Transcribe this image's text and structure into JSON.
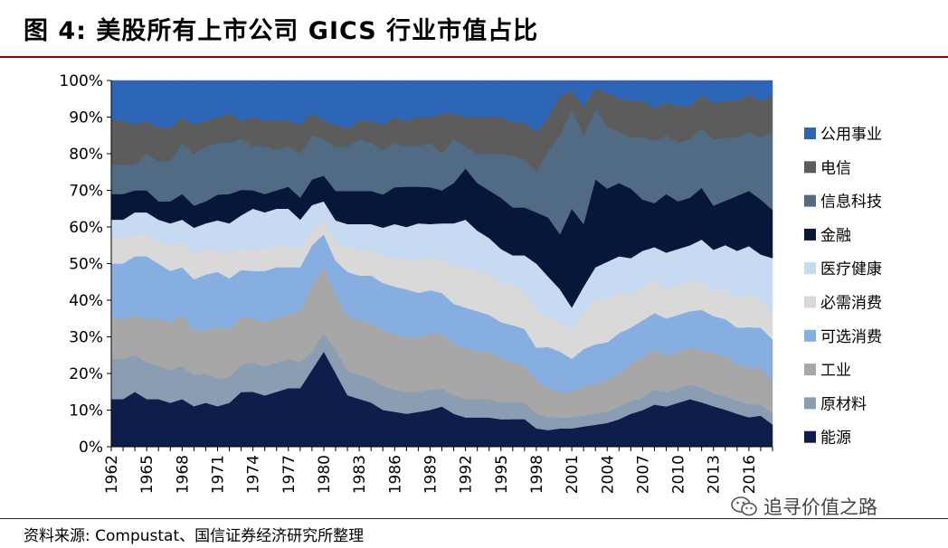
{
  "header": {
    "title": "图 4:  美股所有上市公司 GICS 行业市值占比"
  },
  "footer": {
    "source": "资料来源: Compustat、国信证券经济研究所整理",
    "watermark": "追寻价值之路",
    "watermark_icon": "wechat-icon"
  },
  "chart_data": {
    "type": "area",
    "stacked": true,
    "normalized": true,
    "title": "美股所有上市公司 GICS 行业市值占比",
    "xlabel": "",
    "ylabel": "",
    "ylim": [
      0,
      100
    ],
    "yticks": [
      "0%",
      "10%",
      "20%",
      "30%",
      "40%",
      "50%",
      "60%",
      "70%",
      "80%",
      "90%",
      "100%"
    ],
    "xtick_labels": [
      "1962",
      "1965",
      "1968",
      "1971",
      "1974",
      "1977",
      "1980",
      "1983",
      "1986",
      "1989",
      "1992",
      "1995",
      "1998",
      "2001",
      "2004",
      "2007",
      "2010",
      "2013",
      "2016"
    ],
    "x": [
      1962,
      1963,
      1964,
      1965,
      1966,
      1967,
      1968,
      1969,
      1970,
      1971,
      1972,
      1973,
      1974,
      1975,
      1976,
      1977,
      1978,
      1979,
      1980,
      1981,
      1982,
      1983,
      1984,
      1985,
      1986,
      1987,
      1988,
      1989,
      1990,
      1991,
      1992,
      1993,
      1994,
      1995,
      1996,
      1997,
      1998,
      1999,
      2000,
      2001,
      2002,
      2003,
      2004,
      2005,
      2006,
      2007,
      2008,
      2009,
      2010,
      2011,
      2012,
      2013,
      2014,
      2015,
      2016,
      2017,
      2018
    ],
    "legend_position": "right",
    "series": [
      {
        "name": "能源",
        "color": "#0d1e4b",
        "values": [
          13,
          13,
          15,
          13,
          13,
          12,
          13,
          11,
          12,
          11,
          12,
          15,
          15,
          14,
          15,
          16,
          16,
          21,
          26,
          20,
          14,
          13,
          12,
          10,
          9.5,
          9,
          9.5,
          10,
          11,
          9,
          8,
          8,
          8,
          7.5,
          7.5,
          7.5,
          5,
          4.5,
          5,
          5,
          5.5,
          6,
          6.5,
          7.5,
          9,
          10,
          11.5,
          11,
          12,
          13,
          12,
          11,
          10,
          9,
          8,
          8.5,
          6
        ]
      },
      {
        "name": "原材料",
        "color": "#8b9db3",
        "values": [
          11,
          11,
          10,
          10,
          9,
          9,
          9,
          8.5,
          8,
          7.5,
          7,
          7.5,
          8,
          8,
          8,
          8,
          7,
          5,
          5,
          6.5,
          6.5,
          6.5,
          6.5,
          6.5,
          6,
          6,
          5.5,
          5.5,
          5,
          5,
          5,
          5,
          5,
          4.5,
          4.5,
          4.5,
          4,
          3.5,
          3,
          3,
          3,
          3,
          3,
          3.5,
          3.5,
          3.5,
          4,
          4,
          4,
          4,
          4,
          3.5,
          3.5,
          3.5,
          3.5,
          3,
          3
        ]
      },
      {
        "name": "工业",
        "color": "#a7a7a7",
        "values": [
          11,
          11,
          11,
          12,
          13,
          13,
          14,
          12,
          12,
          14,
          13,
          13,
          12,
          12,
          12,
          12,
          14,
          18,
          18,
          15,
          15,
          15,
          15,
          15,
          15,
          15,
          15,
          15,
          15,
          14,
          14,
          13,
          13,
          12,
          11,
          10,
          9,
          8,
          7,
          7,
          8,
          8,
          9,
          9,
          10,
          11,
          11,
          10,
          10,
          10,
          10,
          11,
          11,
          10,
          10,
          10,
          9
        ]
      },
      {
        "name": "可选消费",
        "color": "#87aee0",
        "values": [
          15,
          15,
          16,
          17,
          15,
          14,
          13,
          14,
          15,
          15,
          14,
          13,
          13,
          14,
          14,
          13,
          12,
          11,
          9,
          9,
          12,
          12,
          13,
          13,
          13,
          13,
          12,
          12,
          11,
          11,
          11,
          11,
          10,
          10,
          10,
          10,
          9,
          11,
          11,
          9,
          10,
          11,
          10,
          11,
          10,
          10,
          10,
          10,
          10,
          10,
          11,
          10,
          10,
          10,
          11,
          11,
          11
        ]
      },
      {
        "name": "必需消费",
        "color": "#d9d9d9",
        "values": [
          7,
          7,
          6,
          6,
          6,
          7,
          7,
          7,
          7,
          6,
          7,
          6,
          6,
          6,
          6,
          6,
          5,
          4,
          4,
          5,
          7,
          7,
          7,
          7,
          8,
          8,
          9,
          9,
          9,
          10,
          11,
          11,
          11,
          11,
          11,
          10,
          10,
          8,
          8,
          8,
          10,
          12,
          12,
          11,
          9,
          9,
          9,
          8,
          8,
          8,
          8,
          7,
          8,
          8,
          9,
          8,
          8
        ]
      },
      {
        "name": "医疗健康",
        "color": "#c6daf2",
        "values": [
          5,
          5,
          6,
          6,
          6,
          6,
          6,
          7,
          7,
          8,
          8,
          9,
          11,
          10,
          10,
          10,
          8,
          7,
          5,
          6,
          6,
          7,
          7,
          8,
          9,
          9,
          10,
          9,
          10,
          12,
          13,
          11,
          10,
          9,
          8,
          10,
          13,
          11,
          9,
          6,
          7,
          9,
          10,
          10,
          10,
          10,
          9,
          10,
          10,
          10,
          11,
          11,
          12,
          13,
          13,
          12,
          14
        ]
      },
      {
        "name": "金融",
        "color": "#071739",
        "values": [
          7,
          7,
          6,
          6,
          5,
          6,
          7,
          6,
          6,
          7,
          8,
          7,
          5,
          5,
          5,
          6,
          6,
          7,
          7,
          8,
          9,
          9,
          9,
          9,
          10,
          11,
          10,
          10,
          9,
          11,
          14,
          13,
          13,
          14,
          13,
          13,
          14,
          16,
          15,
          27,
          17,
          24,
          20,
          20,
          19,
          14,
          12,
          16,
          13,
          13,
          14,
          12,
          12,
          15,
          15,
          15,
          13
        ]
      },
      {
        "name": "信息科技",
        "color": "#526b84",
        "values": [
          8,
          8,
          7,
          10,
          11,
          11,
          14,
          14,
          15,
          14,
          14,
          14,
          12,
          13,
          11,
          11,
          12,
          12,
          10,
          12,
          12,
          14,
          13,
          12,
          12,
          11,
          11,
          12,
          10,
          12,
          6,
          8,
          10,
          12,
          14,
          13,
          11,
          18,
          27,
          27,
          24,
          19,
          17,
          14,
          14,
          17,
          17,
          16,
          16,
          16,
          16,
          18,
          17,
          16,
          16,
          17,
          21
        ]
      },
      {
        "name": "电信",
        "color": "#5c5c5c",
        "values": [
          12,
          12,
          11,
          9,
          9,
          9,
          7,
          8,
          7,
          7,
          8,
          5,
          8,
          7,
          8,
          7,
          8,
          6,
          5,
          6,
          5,
          5,
          6,
          7,
          7,
          7,
          8,
          7,
          11,
          7,
          8,
          10,
          10,
          10,
          9,
          10,
          11,
          9,
          11,
          5,
          8,
          6,
          9,
          9,
          10,
          10,
          9,
          9,
          10,
          9,
          9,
          10,
          10,
          10,
          10,
          10,
          10
        ]
      },
      {
        "name": "公用事业",
        "color": "#2e66b7",
        "values": [
          11,
          11,
          12,
          11,
          13,
          13,
          10,
          12,
          11,
          10,
          9,
          11,
          10,
          11,
          11,
          11,
          12,
          9,
          11,
          12,
          13,
          11,
          11,
          12,
          10,
          11,
          10,
          10,
          9,
          9,
          10,
          10,
          10,
          10,
          11.5,
          11.5,
          14,
          10,
          4,
          3,
          7,
          2,
          3.5,
          5,
          5.5,
          5.5,
          7.5,
          6,
          7,
          7,
          4,
          6,
          5.5,
          5.5,
          4,
          5.5,
          4
        ]
      }
    ]
  }
}
